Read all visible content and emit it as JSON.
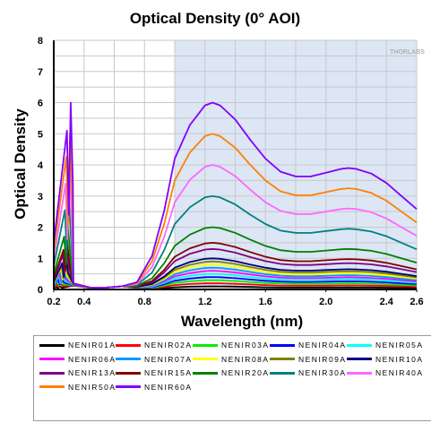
{
  "chart_data": {
    "type": "line",
    "title": "Optical Density (0° AOI)",
    "xlabel": "Wavelength (nm)",
    "ylabel": "Optical Density",
    "watermark": "THORLABS",
    "xlim": [
      0.2,
      2.6
    ],
    "ylim": [
      0,
      8
    ],
    "x_ticks": [
      "0.2",
      "0.4",
      "0.8",
      "1.2",
      "1.6",
      "2.0",
      "2.4",
      "2.6"
    ],
    "y_ticks": [
      "0",
      "1",
      "2",
      "3",
      "4",
      "5",
      "6",
      "7",
      "8"
    ],
    "shaded_region": [
      1.0,
      2.6
    ],
    "grid": true,
    "legend_position": "bottom",
    "base_shape": {
      "x": [
        1.0,
        1.1,
        1.2,
        1.25,
        1.3,
        1.4,
        1.5,
        1.6,
        1.7,
        1.8,
        1.9,
        2.0,
        2.1,
        2.15,
        2.2,
        2.3,
        2.4,
        2.5,
        2.6
      ],
      "shape": [
        0.7,
        0.88,
        0.985,
        1.0,
        0.985,
        0.91,
        0.8,
        0.7,
        0.63,
        0.605,
        0.605,
        0.625,
        0.645,
        0.65,
        0.645,
        0.62,
        0.57,
        0.5,
        0.43
      ]
    },
    "series": [
      {
        "name": "NENIR01A",
        "color": "#000000",
        "peak": 0.1,
        "vis": 0.1
      },
      {
        "name": "NENIR02A",
        "color": "#ff0000",
        "peak": 0.2,
        "vis": 0.2
      },
      {
        "name": "NENIR03A",
        "color": "#00ee00",
        "peak": 0.3,
        "vis": 0.3
      },
      {
        "name": "NENIR04A",
        "color": "#0000ff",
        "peak": 0.4,
        "vis": 0.4
      },
      {
        "name": "NENIR05A",
        "color": "#00ffff",
        "peak": 0.5,
        "vis": 0.5
      },
      {
        "name": "NENIR06A",
        "color": "#ff00ff",
        "peak": 0.6,
        "vis": 0.6
      },
      {
        "name": "NENIR07A",
        "color": "#0099ff",
        "peak": 0.7,
        "vis": 0.7
      },
      {
        "name": "NENIR08A",
        "color": "#ffff00",
        "peak": 0.8,
        "vis": 0.8
      },
      {
        "name": "NENIR09A",
        "color": "#808000",
        "peak": 0.9,
        "vis": 0.9
      },
      {
        "name": "NENIR10A",
        "color": "#000080",
        "peak": 1.0,
        "vis": 1.0
      },
      {
        "name": "NENIR13A",
        "color": "#800080",
        "peak": 1.3,
        "vis": 1.3
      },
      {
        "name": "NENIR15A",
        "color": "#800000",
        "peak": 1.5,
        "vis": 1.5
      },
      {
        "name": "NENIR20A",
        "color": "#008000",
        "peak": 2.0,
        "vis": 2.0
      },
      {
        "name": "NENIR30A",
        "color": "#008080",
        "peak": 3.0,
        "vis": 3.0
      },
      {
        "name": "NENIR40A",
        "color": "#ff66ff",
        "peak": 4.0,
        "vis": 4.0
      },
      {
        "name": "NENIR50A",
        "color": "#ff8000",
        "peak": 5.0,
        "vis": 5.0
      },
      {
        "name": "NENIR60A",
        "color": "#8000ff",
        "peak": 6.0,
        "vis": 6.0
      }
    ]
  }
}
